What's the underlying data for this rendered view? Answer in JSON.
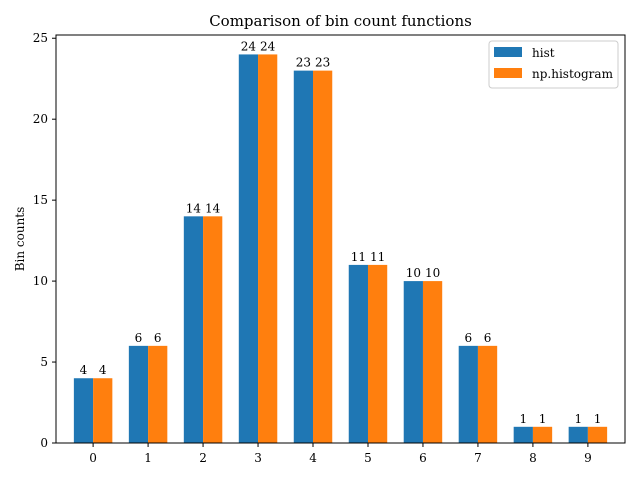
{
  "chart_data": {
    "type": "bar",
    "title": "Comparison of bin count functions",
    "xlabel": "",
    "ylabel": "Bin counts",
    "categories": [
      "0",
      "1",
      "2",
      "3",
      "4",
      "5",
      "6",
      "7",
      "8",
      "9"
    ],
    "series": [
      {
        "name": "hist",
        "color": "#1f77b4",
        "values": [
          4,
          6,
          14,
          24,
          23,
          11,
          10,
          6,
          1,
          1
        ]
      },
      {
        "name": "np.histogram",
        "color": "#ff7f0e",
        "values": [
          4,
          6,
          14,
          24,
          23,
          11,
          10,
          6,
          1,
          1
        ]
      }
    ],
    "ylim": [
      0,
      25.2
    ],
    "yticks": [
      0,
      5,
      10,
      15,
      20,
      25
    ],
    "grid": false,
    "legend_position": "top-right",
    "bar_labels": true
  }
}
